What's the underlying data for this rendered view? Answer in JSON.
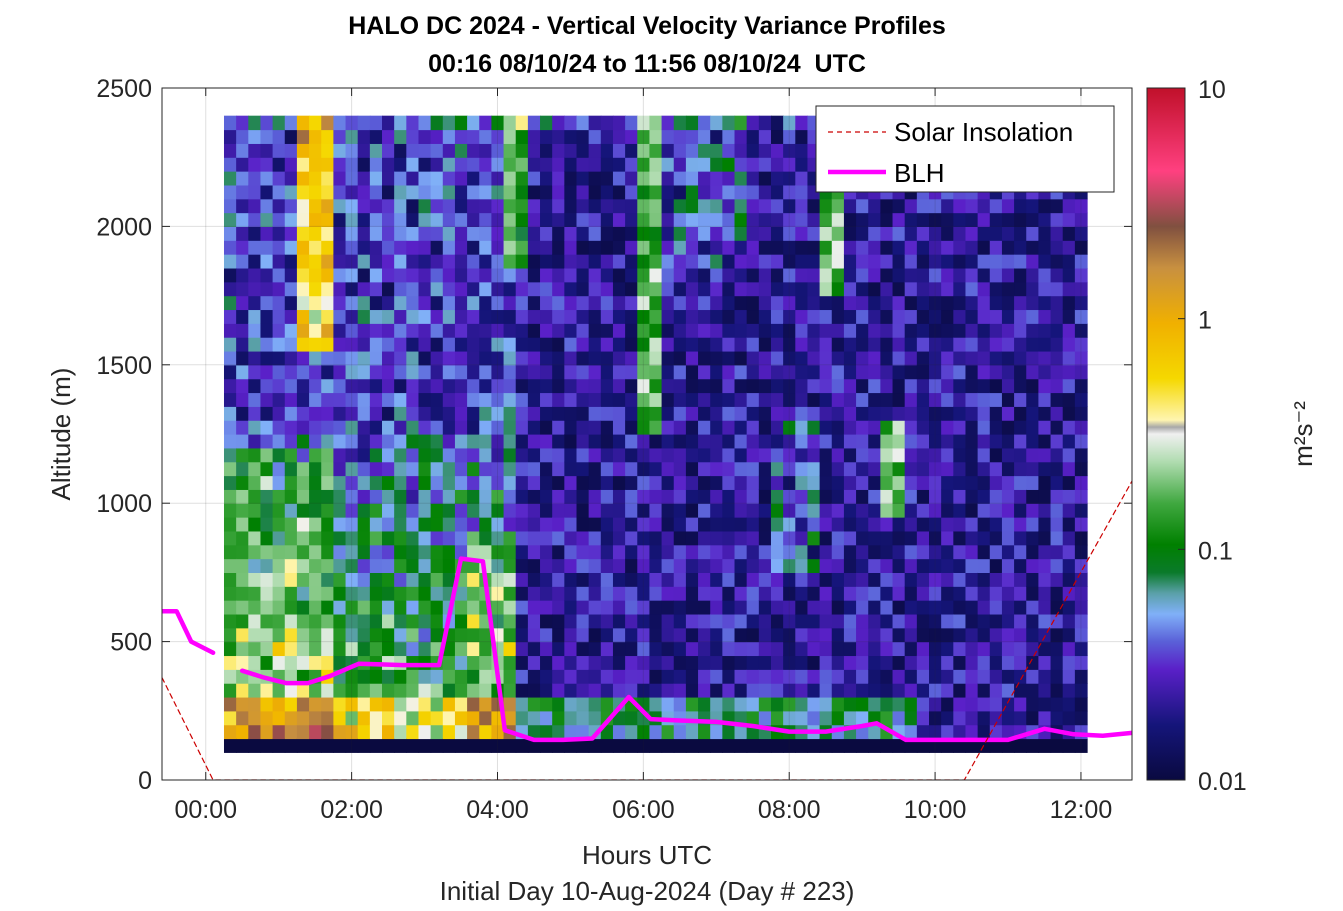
{
  "chart_data": {
    "type": "heatmap",
    "title": "HALO DC 2024 - Vertical Velocity Variance Profiles",
    "subtitle": "00:16 08/10/24 to 11:56 08/10/24  UTC",
    "xlabel": "Hours UTC",
    "xlabel2": "Initial Day 10-Aug-2024 (Day # 223)",
    "ylabel": "Altitude (m)",
    "xlim": [
      -0.6,
      12.7
    ],
    "ylim": [
      0,
      2500
    ],
    "x_ticks": [
      0,
      2,
      4,
      6,
      8,
      10,
      12
    ],
    "x_tick_labels": [
      "00:00",
      "02:00",
      "04:00",
      "06:00",
      "08:00",
      "10:00",
      "12:00"
    ],
    "y_ticks": [
      0,
      500,
      1000,
      1500,
      2000,
      2500
    ],
    "y_tick_labels": [
      "0",
      "500",
      "1000",
      "1500",
      "2000",
      "2500"
    ],
    "grid": true,
    "colorbar": {
      "label": "m²s⁻²",
      "scale": "log",
      "range": [
        0.01,
        10
      ],
      "ticks": [
        0.01,
        0.1,
        1,
        10
      ],
      "tick_labels": [
        "0.01",
        "0.1",
        "1",
        "10"
      ]
    },
    "legend": {
      "placement": "top-right",
      "entries": [
        {
          "label": "Solar Insolation",
          "color": "#cc0000",
          "style": "dashed"
        },
        {
          "label": "BLH",
          "color": "#ff00ff",
          "style": "solid"
        }
      ]
    },
    "heatmap": {
      "x_start": 0.25,
      "x_end": 11.95,
      "y_start": 100,
      "y_end": 2400,
      "summary": "log10 vertical velocity variance (m2 s-2); higher values below ~1000 m between 00:30 and 04:00 UTC, low values (~0.01) above 1500 m after 07:00 UTC"
    },
    "series": [
      {
        "name": "BLH",
        "color": "#ff00ff",
        "x": [
          -0.6,
          -0.4,
          -0.2,
          0.1,
          0.3,
          0.5,
          0.8,
          1.1,
          1.4,
          1.7,
          2.1,
          2.7,
          3.2,
          3.5,
          3.8,
          4.1,
          4.5,
          4.9,
          5.3,
          5.8,
          6.1,
          6.5,
          7.0,
          7.5,
          8.0,
          8.5,
          9.0,
          9.2,
          9.6,
          10.0,
          10.5,
          11.0,
          11.5,
          11.9,
          12.3,
          12.7
        ],
        "y": [
          610,
          610,
          500,
          460,
          null,
          395,
          370,
          350,
          350,
          375,
          420,
          415,
          415,
          800,
          790,
          180,
          145,
          145,
          150,
          300,
          220,
          215,
          210,
          195,
          175,
          175,
          195,
          205,
          145,
          145,
          145,
          145,
          185,
          165,
          160,
          170
        ]
      },
      {
        "name": "Solar Insolation",
        "color": "#cc0000",
        "x": [
          -0.6,
          0.1,
          10.4,
          12.7
        ],
        "y": [
          370,
          0,
          0,
          1080
        ]
      }
    ]
  }
}
